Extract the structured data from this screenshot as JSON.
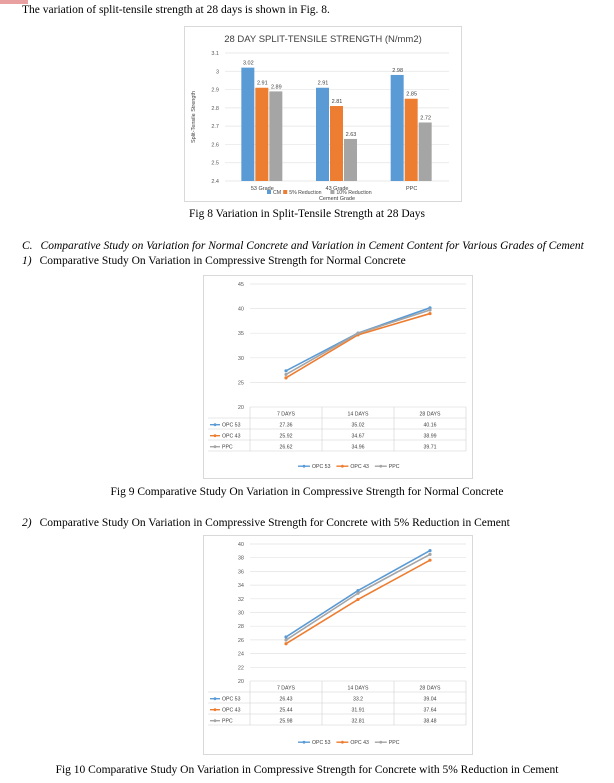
{
  "intro_text": "The variation of split-tensile strength at 28 days is shown in Fig. 8.",
  "fig8_caption": "Fig 8 Variation in Split-Tensile Strength at 28 Days",
  "section_c": {
    "num": "C.",
    "text": "Comparative Study on Variation for Normal Concrete and Variation in Cement Content for Various Grades of Cement"
  },
  "sub1": {
    "num": "1)",
    "text": "Comparative Study On Variation in Compressive Strength for Normal Concrete"
  },
  "fig9_caption": "Fig 9 Comparative Study On Variation in Compressive Strength for Normal Concrete",
  "sub2": {
    "num": "2)",
    "text": "Comparative Study On Variation in Compressive Strength for Concrete with 5% Reduction in Cement"
  },
  "fig10_caption": "Fig 10 Comparative Study On Variation in Compressive Strength for Concrete with 5% Reduction in Cement",
  "chart_data": [
    {
      "type": "bar",
      "title": "28 DAY SPLIT-TENSILE STRENGTH (N/mm2)",
      "xlabel": "Cement Grade",
      "ylabel": "Split-Tensile Strength",
      "categories": [
        "53 Grade",
        "43 Grade",
        "PPC"
      ],
      "series": [
        {
          "name": "CM",
          "values": [
            3.02,
            2.91,
            2.98
          ],
          "color": "#5b9bd5"
        },
        {
          "name": "5% Reduction",
          "values": [
            2.91,
            2.81,
            2.85
          ],
          "color": "#ed7d31"
        },
        {
          "name": "10% Reduction",
          "values": [
            2.89,
            2.63,
            2.72
          ],
          "color": "#a5a5a5"
        }
      ],
      "ylim": [
        2.4,
        3.1
      ],
      "yticks": [
        "2.4",
        "2.5",
        "2.6",
        "2.7",
        "2.8",
        "2.9",
        "3",
        "3.1"
      ],
      "grid": true,
      "legend": "bottom"
    },
    {
      "type": "line",
      "categories": [
        "7 DAYS",
        "14 DAYS",
        "28 DAYS"
      ],
      "series": [
        {
          "name": "OPC 53",
          "values": [
            27.36,
            35.02,
            40.16
          ],
          "labels": [
            "27.36",
            "35.02",
            "40.16"
          ],
          "color": "#5b9bd5"
        },
        {
          "name": "OPC 43",
          "values": [
            25.92,
            34.67,
            38.99
          ],
          "labels": [
            "25.92",
            "34.67",
            "38.99"
          ],
          "color": "#ed7d31"
        },
        {
          "name": "PPC",
          "values": [
            26.62,
            34.96,
            39.71
          ],
          "labels": [
            "26.62",
            "34.96",
            "39.71"
          ],
          "color": "#a5a5a5"
        }
      ],
      "ylim": [
        20,
        45
      ],
      "yticks": [
        "20",
        "25",
        "30",
        "35",
        "40",
        "45"
      ],
      "grid": true,
      "data_table": true,
      "legend": "bottom"
    },
    {
      "type": "line",
      "categories": [
        "7 DAYS",
        "14 DAYS",
        "28 DAYS"
      ],
      "series": [
        {
          "name": "OPC 53",
          "values": [
            26.43,
            33.2,
            39.04
          ],
          "labels": [
            "26.43",
            "33.2",
            "39.04"
          ],
          "color": "#5b9bd5"
        },
        {
          "name": "OPC 43",
          "values": [
            25.44,
            31.91,
            37.64
          ],
          "labels": [
            "25.44",
            "31.91",
            "37.64"
          ],
          "color": "#ed7d31"
        },
        {
          "name": "PPC",
          "values": [
            25.98,
            32.81,
            38.48
          ],
          "labels": [
            "25.98",
            "32.81",
            "38.48"
          ],
          "color": "#a5a5a5"
        }
      ],
      "ylim": [
        20,
        40
      ],
      "yticks": [
        "20",
        "22",
        "24",
        "26",
        "28",
        "30",
        "32",
        "34",
        "36",
        "38",
        "40"
      ],
      "grid": true,
      "data_table": true,
      "legend": "bottom"
    }
  ]
}
